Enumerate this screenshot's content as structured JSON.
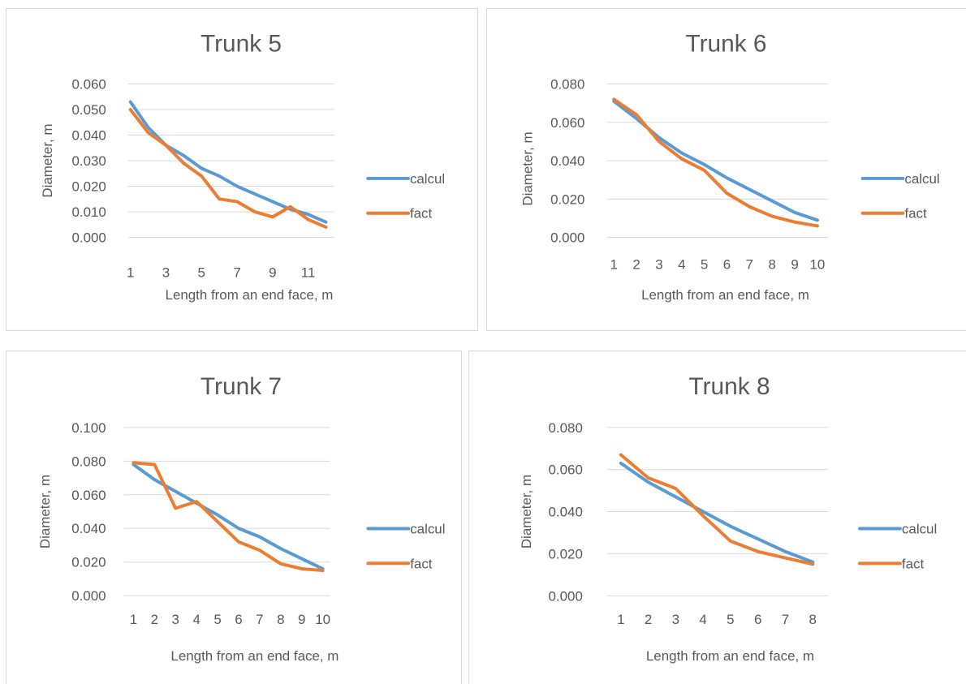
{
  "colors": {
    "calcul": "#5b9bd5",
    "fact": "#ed7d31",
    "grid": "#d9d9d9",
    "text": "#595959",
    "border": "#d9d9d9"
  },
  "chart_data": [
    {
      "type": "line",
      "title": "Trunk 5",
      "xlabel": "Length from an end face, m",
      "ylabel": "Diameter, m",
      "x": [
        1,
        2,
        3,
        4,
        5,
        6,
        7,
        8,
        9,
        10,
        11,
        12
      ],
      "x_tick_labels": [
        "1",
        "3",
        "5",
        "7",
        "9",
        "11"
      ],
      "x_tick_positions": [
        1,
        3,
        5,
        7,
        9,
        11
      ],
      "y_ticks": [
        "0.000",
        "0.010",
        "0.020",
        "0.030",
        "0.040",
        "0.050",
        "0.060"
      ],
      "ylim": [
        0,
        0.06
      ],
      "series": [
        {
          "name": "calcul",
          "values": [
            0.053,
            0.043,
            0.036,
            0.032,
            0.027,
            0.024,
            0.02,
            0.017,
            0.014,
            0.011,
            0.009,
            0.006
          ]
        },
        {
          "name": "fact",
          "values": [
            0.05,
            0.041,
            0.036,
            0.029,
            0.024,
            0.015,
            0.014,
            0.01,
            0.008,
            0.012,
            0.007,
            0.004
          ]
        }
      ],
      "legend": "right",
      "grid": true
    },
    {
      "type": "line",
      "title": "Trunk 6",
      "xlabel": "Length from an end face, m",
      "ylabel": "Diameter, m",
      "x": [
        1,
        2,
        3,
        4,
        5,
        6,
        7,
        8,
        9,
        10
      ],
      "x_tick_labels": [
        "1",
        "2",
        "3",
        "4",
        "5",
        "6",
        "7",
        "8",
        "9",
        "10"
      ],
      "x_tick_positions": [
        1,
        2,
        3,
        4,
        5,
        6,
        7,
        8,
        9,
        10
      ],
      "y_ticks": [
        "0.000",
        "0.020",
        "0.040",
        "0.060",
        "0.080"
      ],
      "ylim": [
        0,
        0.08
      ],
      "series": [
        {
          "name": "calcul",
          "values": [
            0.071,
            0.062,
            0.052,
            0.044,
            0.038,
            0.031,
            0.025,
            0.019,
            0.013,
            0.009
          ]
        },
        {
          "name": "fact",
          "values": [
            0.072,
            0.064,
            0.05,
            0.041,
            0.035,
            0.023,
            0.016,
            0.011,
            0.008,
            0.006
          ]
        }
      ],
      "legend": "right",
      "grid": true
    },
    {
      "type": "line",
      "title": "Trunk 7",
      "xlabel": "Length from an end face, m",
      "ylabel": "Diameter, m",
      "x": [
        1,
        2,
        3,
        4,
        5,
        6,
        7,
        8,
        9,
        10
      ],
      "x_tick_labels": [
        "1",
        "2",
        "3",
        "4",
        "5",
        "6",
        "7",
        "8",
        "9",
        "10"
      ],
      "x_tick_positions": [
        1,
        2,
        3,
        4,
        5,
        6,
        7,
        8,
        9,
        10
      ],
      "y_ticks": [
        "0.000",
        "0.020",
        "0.040",
        "0.060",
        "0.080",
        "0.100"
      ],
      "ylim": [
        0,
        0.1
      ],
      "series": [
        {
          "name": "calcul",
          "values": [
            0.078,
            0.069,
            0.062,
            0.055,
            0.048,
            0.04,
            0.035,
            0.028,
            0.022,
            0.016
          ]
        },
        {
          "name": "fact",
          "values": [
            0.079,
            0.078,
            0.052,
            0.056,
            0.044,
            0.032,
            0.027,
            0.019,
            0.016,
            0.015
          ]
        }
      ],
      "legend": "right",
      "grid": true
    },
    {
      "type": "line",
      "title": "Trunk 8",
      "xlabel": "Length from an end face, m",
      "ylabel": "Diameter, m",
      "x": [
        1,
        2,
        3,
        4,
        5,
        6,
        7,
        8
      ],
      "x_tick_labels": [
        "1",
        "2",
        "3",
        "4",
        "5",
        "6",
        "7",
        "8"
      ],
      "x_tick_positions": [
        1,
        2,
        3,
        4,
        5,
        6,
        7,
        8
      ],
      "y_ticks": [
        "0.000",
        "0.020",
        "0.040",
        "0.060",
        "0.080"
      ],
      "ylim": [
        0,
        0.08
      ],
      "series": [
        {
          "name": "calcul",
          "values": [
            0.063,
            0.054,
            0.047,
            0.04,
            0.033,
            0.027,
            0.021,
            0.016
          ]
        },
        {
          "name": "fact",
          "values": [
            0.067,
            0.056,
            0.051,
            0.038,
            0.026,
            0.021,
            0.018,
            0.015
          ]
        }
      ],
      "legend": "right",
      "grid": true
    }
  ]
}
